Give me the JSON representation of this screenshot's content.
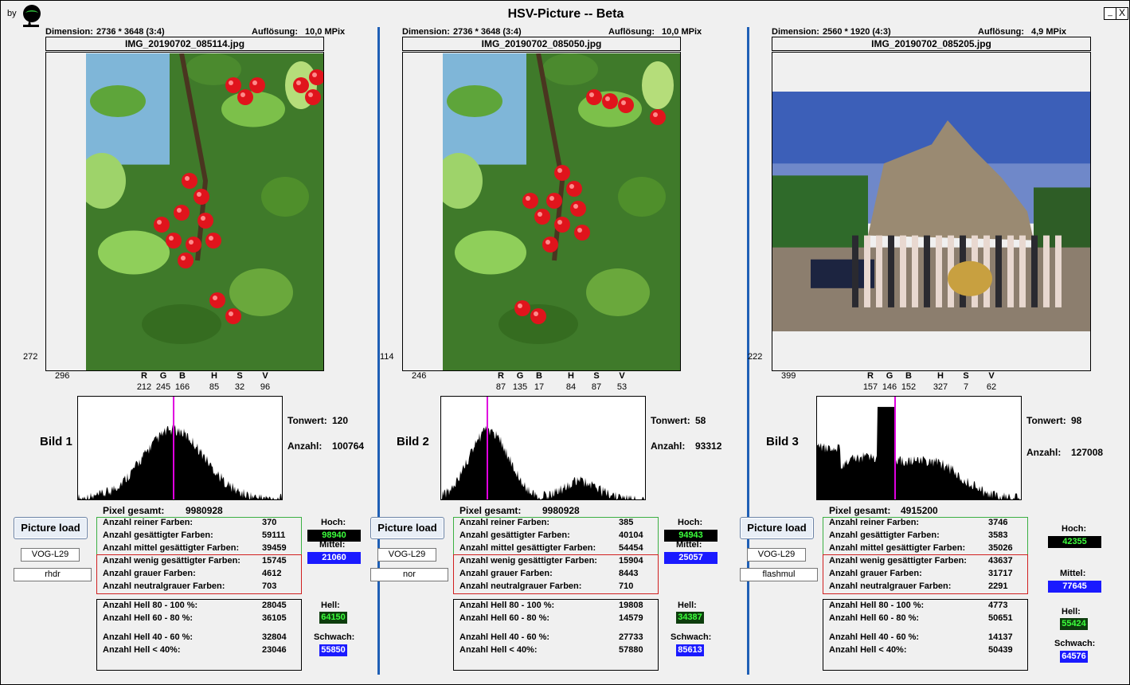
{
  "window": {
    "by_label": "by",
    "title": "HSV-Picture -- Beta",
    "minimize": "_",
    "close": "X"
  },
  "channel_labels": [
    "R",
    "G",
    "B",
    "H",
    "S",
    "V"
  ],
  "labels": {
    "dimension": "Dimension:",
    "resolution": "Auflösung:",
    "tonwert": "Tonwert:",
    "anzahl": "Anzahl:",
    "pixel_total": "Pixel gesamt:",
    "load": "Picture load",
    "hoch": "Hoch:",
    "mittel": "Mittel:",
    "hell": "Hell:",
    "schwach": "Schwach:",
    "green_rows": [
      "Anzahl reiner Farben:",
      "Anzahl gesättigter Farben:",
      "Anzahl mittel gesättigter Farben:"
    ],
    "red_rows": [
      "Anzahl wenig gesättigter Farben:",
      "Anzahl grauer Farben:",
      "Anzahl neutralgrauer Farben:"
    ],
    "black_rows": [
      "Anzahl Hell 80 - 100 %:",
      "Anzahl Hell 60 - 80 %:",
      "Anzahl Hell 40 - 60 %:",
      "Anzahl Hell < 40%:"
    ]
  },
  "colors": {
    "separator": "#1f5fb5",
    "green_box": "#3cb043",
    "red_box": "#d02020",
    "hoch_bg": "#000000",
    "hoch_fg": "#3cff3c",
    "mittel_bg": "#1a1aff",
    "hell_bg": "#0d3d0d",
    "schwach_bg": "#1a1aff"
  },
  "panels": [
    {
      "dimension": "2736 * 3648 (3:4)",
      "resolution": "10,0 MPix",
      "filename": "IMG_20190702_085114.jpg",
      "cursor_y": "272",
      "cursor_x": "296",
      "rgbhsv": [
        "212",
        "245",
        "166",
        "85",
        "32",
        "96"
      ],
      "bild": "Bild 1",
      "tonwert": "120",
      "anzahl": "100764",
      "pixel_total": "9980928",
      "device": "VOG-L29",
      "mode": "rhdr",
      "green": [
        "370",
        "59111",
        "39459"
      ],
      "red": [
        "15745",
        "4612",
        "703"
      ],
      "black": [
        "28045",
        "36105",
        "32804",
        "23046"
      ],
      "hoch": "98940",
      "mittel": "21060",
      "hell": "64150",
      "schwach": "55850",
      "histogram_peak": 120
    },
    {
      "dimension": "2736 * 3648 (3:4)",
      "resolution": "10,0 MPix",
      "filename": "IMG_20190702_085050.jpg",
      "cursor_y": "114",
      "cursor_x": "246",
      "rgbhsv": [
        "87",
        "135",
        "17",
        "84",
        "87",
        "53"
      ],
      "bild": "Bild 2",
      "tonwert": "58",
      "anzahl": "93312",
      "pixel_total": "9980928",
      "device": "VOG-L29",
      "mode": "nor",
      "green": [
        "385",
        "40104",
        "54454"
      ],
      "red": [
        "15904",
        "8443",
        "710"
      ],
      "black": [
        "19808",
        "14579",
        "27733",
        "57880"
      ],
      "hoch": "94943",
      "mittel": "25057",
      "hell": "34387",
      "schwach": "85613",
      "histogram_peak": 58
    },
    {
      "dimension": "2560 * 1920 (4:3)",
      "resolution": "4,9 MPix",
      "filename": "IMG_20190702_085205.jpg",
      "cursor_y": "222",
      "cursor_x": "399",
      "rgbhsv": [
        "157",
        "146",
        "152",
        "327",
        "7",
        "62"
      ],
      "bild": "Bild 3",
      "tonwert": "98",
      "anzahl": "127008",
      "pixel_total": "4915200",
      "device": "VOG-L29",
      "mode": "flashmul",
      "green": [
        "3746",
        "3583",
        "35026"
      ],
      "red": [
        "43637",
        "31717",
        "2291"
      ],
      "black": [
        "4773",
        "50651",
        "14137",
        "50439"
      ],
      "hoch": "42355",
      "mittel": "77645",
      "hell": "55424",
      "schwach": "64576",
      "histogram_peak": 98
    }
  ]
}
